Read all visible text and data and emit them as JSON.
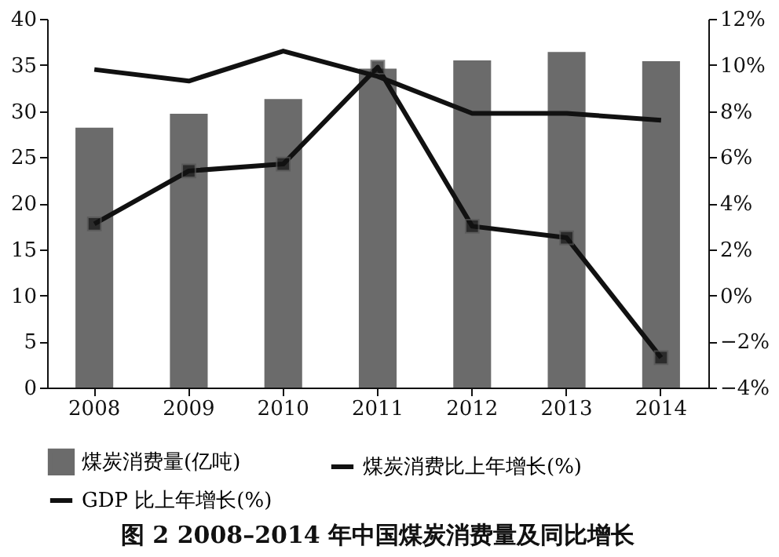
{
  "chart_data": {
    "type": "bar",
    "title": "图 2   2008–2014 年中国煤炭消费量及同比增长",
    "categories": [
      "2008",
      "2009",
      "2010",
      "2011",
      "2012",
      "2013",
      "2014"
    ],
    "series": [
      {
        "name": "煤炭消费量(亿吨)",
        "color": "#6b6b6b",
        "values": [
          28.2,
          29.7,
          31.3,
          34.6,
          35.5,
          36.4,
          35.4
        ]
      },
      {
        "name": "煤炭消费比上年增长(%)",
        "type": "line",
        "axis": "y2",
        "marker": "square",
        "color": "#111111",
        "values": [
          3.1,
          5.4,
          5.7,
          9.9,
          3.0,
          2.5,
          -2.7
        ]
      },
      {
        "name": "GDP 比上年增长(%)",
        "type": "line",
        "axis": "y2",
        "marker": "none",
        "color": "#111111",
        "values": [
          9.8,
          9.3,
          10.6,
          9.5,
          7.9,
          7.9,
          7.6
        ]
      }
    ],
    "ylim": [
      0,
      40
    ],
    "yticks": [
      0,
      5,
      10,
      15,
      20,
      25,
      30,
      35,
      40
    ],
    "y2lim": [
      -4,
      12
    ],
    "y2ticks": [
      {
        "value": -4,
        "label": "−4%"
      },
      {
        "value": -2,
        "label": "−2%"
      },
      {
        "value": 0,
        "label": "0%"
      },
      {
        "value": 2,
        "label": "2%"
      },
      {
        "value": 4,
        "label": "4%"
      },
      {
        "value": 6,
        "label": "6%"
      },
      {
        "value": 8,
        "label": "8%"
      },
      {
        "value": 10,
        "label": "10%"
      },
      {
        "value": 12,
        "label": "12%"
      }
    ],
    "legend": "bottom",
    "grid": false,
    "line_style": "solid"
  }
}
